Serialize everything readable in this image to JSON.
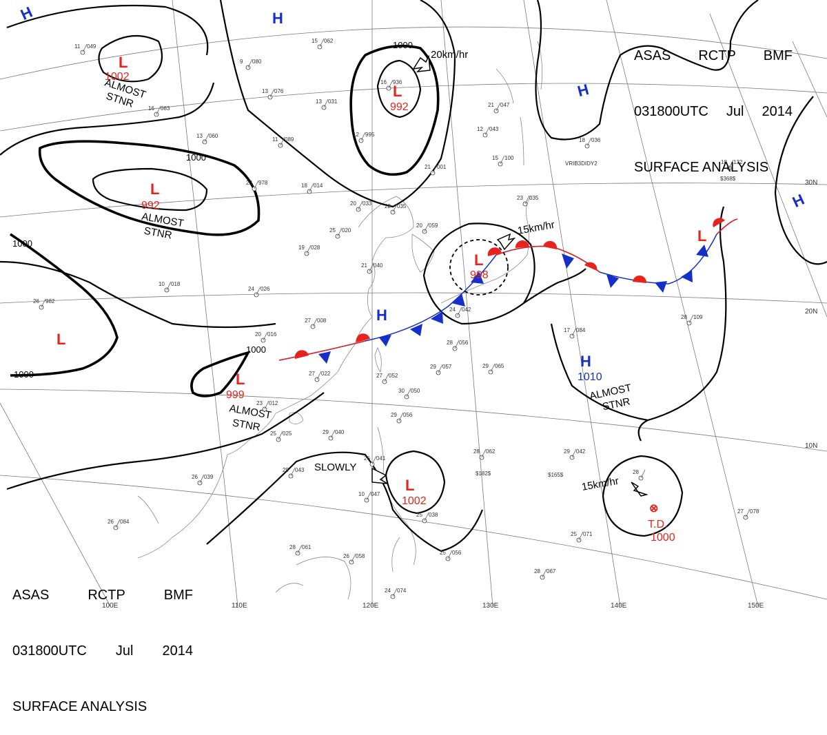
{
  "header": {
    "line1": [
      "ASAS",
      "RCTP",
      "BMF"
    ],
    "line2": [
      "031800UTC",
      "Jul",
      "2014"
    ],
    "line3": "SURFACE ANALYSIS"
  },
  "grid_labels": {
    "lon": [
      "100E",
      "110E",
      "120E",
      "130E",
      "140E",
      "150E"
    ],
    "lat": [
      "30N",
      "20N",
      "10N"
    ]
  },
  "systems": {
    "lows": [
      {
        "letter": "L",
        "pressure": "1002"
      },
      {
        "letter": "L",
        "pressure": "992"
      },
      {
        "letter": "L",
        "pressure": "992"
      },
      {
        "letter": "L",
        "pressure": ""
      },
      {
        "letter": "L",
        "pressure": "999"
      },
      {
        "letter": "L",
        "pressure": "998"
      },
      {
        "letter": "L",
        "pressure": ""
      },
      {
        "letter": "L",
        "pressure": "1002"
      }
    ],
    "highs": [
      {
        "letter": "H",
        "pressure": ""
      },
      {
        "letter": "H",
        "pressure": ""
      },
      {
        "letter": "H",
        "pressure": ""
      },
      {
        "letter": "H",
        "pressure": ""
      },
      {
        "letter": "H",
        "pressure": ""
      },
      {
        "letter": "H",
        "pressure": "1010"
      }
    ],
    "td": {
      "label": "T.D.",
      "pressure": "1000"
    }
  },
  "isobar_labels": [
    "1000",
    "1000",
    "1000",
    "1000",
    "1000"
  ],
  "annotations": {
    "almost_stnr": [
      "ALMOST",
      "STNR"
    ],
    "motion_20": "20km/hr",
    "motion_15a": "15km/hr",
    "motion_15b": "15km/hr",
    "slowly": "SLOWLY"
  },
  "colors": {
    "low": "#e8231e",
    "high": "#1530c8",
    "warm_front": "#e8231e",
    "cold_front": "#1530c8",
    "isobar": "#000000"
  },
  "stations": [
    {
      "t": "11",
      "p": "049"
    },
    {
      "t": "15",
      "p": "062"
    },
    {
      "t": "9",
      "p": "080"
    },
    {
      "t": "13",
      "p": "076"
    },
    {
      "t": "16",
      "p": "083"
    },
    {
      "t": "13",
      "p": "031"
    },
    {
      "t": "16",
      "p": "936"
    },
    {
      "t": "12",
      "p": "995"
    },
    {
      "t": "11",
      "p": "089"
    },
    {
      "t": "13",
      "p": "060"
    },
    {
      "t": "22",
      "p": "978"
    },
    {
      "t": "18",
      "p": "014"
    },
    {
      "t": "20",
      "p": "033"
    },
    {
      "t": "22",
      "p": "035"
    },
    {
      "t": "25",
      "p": "020"
    },
    {
      "t": "19",
      "p": "028"
    },
    {
      "t": "24",
      "p": "026"
    },
    {
      "t": "10",
      "p": "018"
    },
    {
      "t": "26",
      "p": "982"
    },
    {
      "t": "27",
      "p": "008"
    },
    {
      "t": "20",
      "p": "016"
    },
    {
      "t": "27",
      "p": "022"
    },
    {
      "t": "23",
      "p": "012"
    },
    {
      "t": "25",
      "p": "025"
    },
    {
      "t": "29",
      "p": "040"
    },
    {
      "t": "26",
      "p": "039"
    },
    {
      "t": "29",
      "p": "043"
    },
    {
      "t": "27",
      "p": "052"
    },
    {
      "t": "30",
      "p": "050"
    },
    {
      "t": "29",
      "p": "056"
    },
    {
      "t": "28",
      "p": "056"
    },
    {
      "t": "29",
      "p": "057"
    },
    {
      "t": "29",
      "p": "065"
    },
    {
      "t": "24",
      "p": "042"
    },
    {
      "t": "21",
      "p": "040"
    },
    {
      "t": "20",
      "p": "059"
    },
    {
      "t": "23",
      "p": "035"
    },
    {
      "t": "17",
      "p": "084"
    },
    {
      "t": "28",
      "p": "109"
    },
    {
      "t": "21",
      "p": "001"
    },
    {
      "t": "15",
      "p": "100"
    },
    {
      "t": "12",
      "p": "043"
    },
    {
      "t": "21",
      "p": "047"
    },
    {
      "t": "18",
      "p": "036"
    },
    {
      "t": "18",
      "p": "132"
    },
    {
      "t": "28",
      "p": "062"
    },
    {
      "t": "29",
      "p": "042"
    },
    {
      "t": "28",
      "p": ""
    },
    {
      "t": "27",
      "p": "078"
    },
    {
      "t": "25",
      "p": "071"
    },
    {
      "t": "28",
      "p": "067"
    },
    {
      "t": "26",
      "p": "041"
    },
    {
      "t": "28",
      "p": "061"
    },
    {
      "t": "26",
      "p": "058"
    },
    {
      "t": "25",
      "p": "038"
    },
    {
      "t": "25",
      "p": "056"
    },
    {
      "t": "24",
      "p": "074"
    },
    {
      "t": "26",
      "p": "084"
    },
    {
      "t": "10",
      "p": "047"
    }
  ],
  "station_notes": [
    "VRIB3DIDY2",
    "$368$",
    "$165$",
    "$182$"
  ]
}
